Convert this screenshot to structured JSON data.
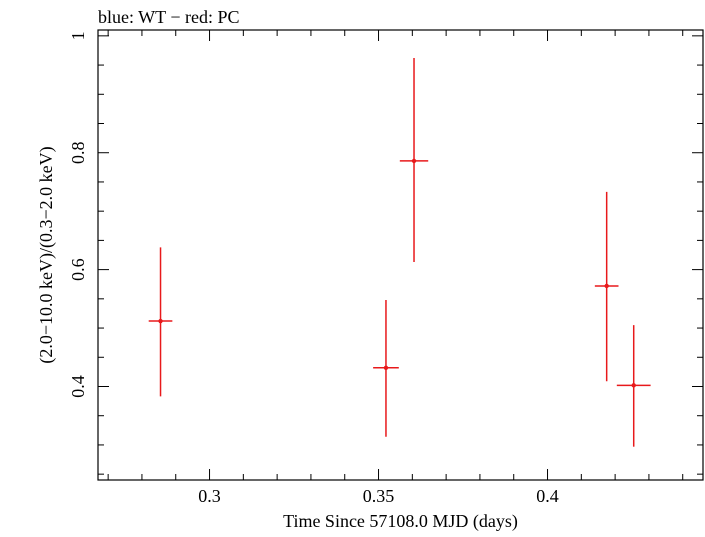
{
  "chart_data": {
    "type": "scatter",
    "title": "blue: WT − red: PC",
    "xlabel": "Time Since 57108.0 MJD (days)",
    "ylabel": "(2.0−10.0 keV)/(0.3−2.0 keV)",
    "xlim": [
      0.267,
      0.446
    ],
    "ylim": [
      0.24,
      1.01
    ],
    "xticks": [
      {
        "value": 0.3,
        "label": "0.3"
      },
      {
        "value": 0.35,
        "label": "0.35"
      },
      {
        "value": 0.4,
        "label": "0.4"
      }
    ],
    "yticks": [
      {
        "value": 0.4,
        "label": "0.4"
      },
      {
        "value": 0.6,
        "label": "0.6"
      },
      {
        "value": 0.8,
        "label": "0.8"
      },
      {
        "value": 1.0,
        "label": "1"
      }
    ],
    "grid": false,
    "series": [
      {
        "color": "#e8191b",
        "points": [
          {
            "x": 0.2855,
            "y": 0.512,
            "xerr": 0.0035,
            "ylow": 0.383,
            "yhigh": 0.638
          },
          {
            "x": 0.3522,
            "y": 0.432,
            "xerr": 0.0038,
            "ylow": 0.314,
            "yhigh": 0.548
          },
          {
            "x": 0.3605,
            "y": 0.786,
            "xerr": 0.0042,
            "ylow": 0.613,
            "yhigh": 0.962
          },
          {
            "x": 0.4175,
            "y": 0.572,
            "xerr": 0.0035,
            "ylow": 0.409,
            "yhigh": 0.733
          },
          {
            "x": 0.4255,
            "y": 0.402,
            "xerr": 0.005,
            "ylow": 0.297,
            "yhigh": 0.505
          }
        ]
      }
    ]
  }
}
